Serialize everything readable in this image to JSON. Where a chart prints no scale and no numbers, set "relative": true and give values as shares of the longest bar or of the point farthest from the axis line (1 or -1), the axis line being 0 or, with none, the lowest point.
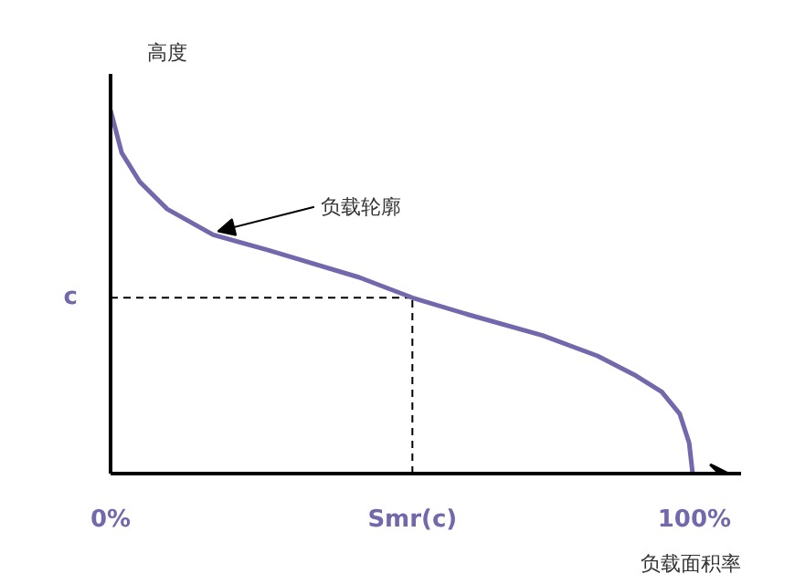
{
  "chart_data": {
    "type": "line",
    "relative": true,
    "ylabel": "高度",
    "xlabel": "负载面积率",
    "x": [
      0,
      1.9,
      5,
      9.7,
      17.6,
      27,
      42.6,
      51.7,
      61.4,
      74,
      83.4,
      89.7,
      94.4,
      97.5,
      99.1,
      99.7
    ],
    "series": [
      {
        "color": "#7468ad",
        "values": [
          1.0,
          0.883,
          0.803,
          0.728,
          0.657,
          0.615,
          0.54,
          0.484,
          0.437,
          0.38,
          0.324,
          0.272,
          0.225,
          0.164,
          0.085,
          0
        ]
      }
    ],
    "xlim": [
      0,
      108
    ],
    "xticks": [
      {
        "value": 0,
        "label": "0%"
      },
      {
        "value": 100,
        "label": "100%"
      }
    ],
    "ref_lines": [
      {
        "axis": "y",
        "value": 0.484,
        "label": "c",
        "line_style": "dashed",
        "color": "#000000"
      },
      {
        "axis": "x",
        "value": 51.7,
        "label": "Smr(c)",
        "line_style": "dashed",
        "color": "#000000"
      }
    ],
    "annotations": [
      {
        "text": "负载轮廓",
        "x": 17.6,
        "y": 0.657
      }
    ],
    "grid": false,
    "marker": "none",
    "line_style": "solid"
  }
}
